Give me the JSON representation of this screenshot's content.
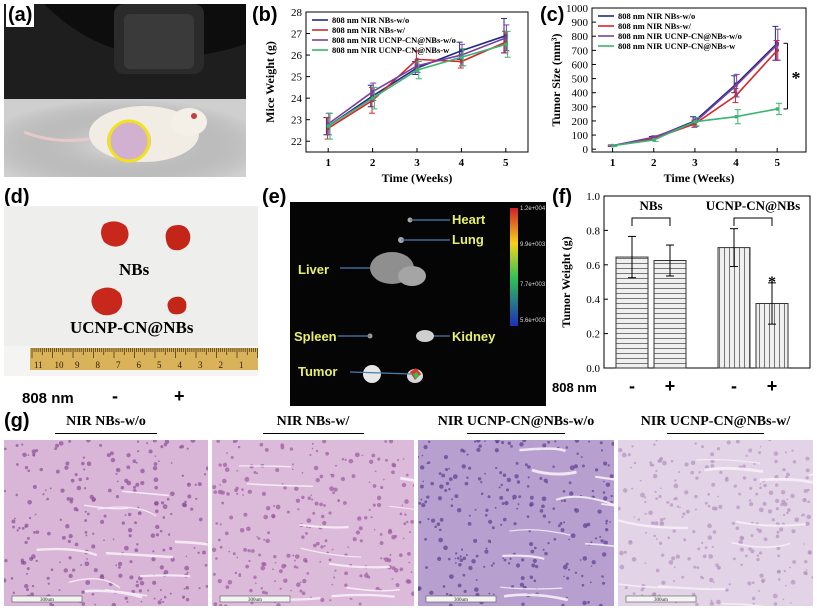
{
  "panel_labels": {
    "a": "(a)",
    "b": "(b)",
    "c": "(c)",
    "d": "(d)",
    "e": "(e)",
    "f": "(f)",
    "g": "(g)"
  },
  "colors": {
    "s1": "#1f2a8a",
    "s2": "#d62728",
    "s3": "#7b3fa0",
    "s4": "#3cb371",
    "photo_bg": "#1a1a1a",
    "ring": "#f2e21a",
    "tumor": "#c8281c",
    "ruler": "#d9b25a",
    "he_bg": "#cfb3d6",
    "he_dark": "#6e3d8c"
  },
  "legend_series": [
    "808 nm NIR NBs-w/o",
    "808 nm NIR NBs-w/",
    "808 nm NIR UCNP-CN@NBs-w/o",
    "808 nm NIR UCNP-CN@NBs-w"
  ],
  "chart_data": [
    {
      "id": "b",
      "type": "line",
      "xlabel": "Time (Weeks)",
      "ylabel": "Mice Weight (g)",
      "x": [
        1,
        2,
        3,
        4,
        5
      ],
      "xlim": [
        0.5,
        5.5
      ],
      "ylim": [
        21.5,
        28
      ],
      "yticks": [
        22,
        23,
        24,
        25,
        26,
        27,
        28
      ],
      "series": [
        {
          "name": "808 nm NIR NBs-w/o",
          "values": [
            22.7,
            24.1,
            25.4,
            26.2,
            26.9
          ],
          "err": [
            0.4,
            0.5,
            0.3,
            0.4,
            0.8
          ]
        },
        {
          "name": "808 nm NIR NBs-w/",
          "values": [
            22.6,
            23.9,
            25.8,
            25.7,
            26.6
          ],
          "err": [
            0.5,
            0.6,
            0.4,
            0.3,
            0.5
          ]
        },
        {
          "name": "808 nm NIR UCNP-CN@NBs-w/o",
          "values": [
            22.8,
            24.3,
            25.5,
            26.0,
            26.8
          ],
          "err": [
            0.5,
            0.4,
            0.3,
            0.5,
            0.6
          ]
        },
        {
          "name": "808 nm NIR UCNP-CN@NBs-w",
          "values": [
            22.7,
            24.0,
            25.3,
            25.9,
            26.5
          ],
          "err": [
            0.6,
            0.5,
            0.4,
            0.4,
            0.6
          ]
        }
      ],
      "grid": false,
      "legend": "top-left"
    },
    {
      "id": "c",
      "type": "line",
      "xlabel": "Time (Weeks)",
      "ylabel": "Tumor Size (mm³)",
      "x": [
        1,
        2,
        3,
        4,
        5
      ],
      "xlim": [
        0.5,
        5.7
      ],
      "ylim": [
        -20,
        1000
      ],
      "yticks": [
        0,
        100,
        200,
        300,
        400,
        500,
        600,
        700,
        800,
        900,
        1000
      ],
      "series": [
        {
          "name": "808 nm NIR NBs-w/o",
          "values": [
            25,
            80,
            200,
            460,
            750
          ],
          "err": [
            5,
            10,
            30,
            60,
            120
          ]
        },
        {
          "name": "808 nm NIR NBs-w/",
          "values": [
            25,
            75,
            180,
            380,
            700
          ],
          "err": [
            5,
            10,
            25,
            50,
            70
          ]
        },
        {
          "name": "808 nm NIR UCNP-CN@NBs-w/o",
          "values": [
            25,
            85,
            190,
            450,
            740
          ],
          "err": [
            5,
            10,
            30,
            80,
            110
          ]
        },
        {
          "name": "808 nm NIR UCNP-CN@NBs-w",
          "values": [
            25,
            65,
            195,
            230,
            285
          ],
          "err": [
            5,
            10,
            30,
            50,
            40
          ]
        }
      ],
      "significance": "*",
      "grid": false,
      "legend": "top-left"
    },
    {
      "id": "f",
      "type": "bar",
      "ylabel": "Tumor Weight (g)",
      "categories": [
        "-",
        "+",
        "-",
        "+"
      ],
      "groups": [
        "NBs",
        "UCNP-CN@NBs"
      ],
      "values": [
        0.645,
        0.625,
        0.7,
        0.375
      ],
      "err": [
        0.12,
        0.09,
        0.11,
        0.12
      ],
      "ylim": [
        0,
        1.0
      ],
      "yticks": [
        0.0,
        0.2,
        0.4,
        0.6,
        0.8,
        1.0
      ],
      "significance": "*",
      "condition_label": "808 nm",
      "grid": false
    }
  ],
  "panel_d": {
    "nbs_label": "NBs",
    "ucnp_label": "UCNP-CN@NBs",
    "ruler_ticks": [
      "11",
      "10",
      "9",
      "8",
      "7",
      "6",
      "5",
      "4",
      "3",
      "2",
      "1"
    ],
    "condition_label": "808 nm",
    "minus": "-",
    "plus": "+"
  },
  "panel_e": {
    "organs": [
      "Heart",
      "Lung",
      "Liver",
      "Spleen",
      "Kidney",
      "Tumor"
    ],
    "scale_ticks": [
      "1.2e+004",
      "9.9e+003",
      "7.7e+003",
      "5.6e+003"
    ]
  },
  "panel_g": {
    "titles": [
      "NIR NBs-w/o",
      "NIR NBs-w/",
      "NIR UCNP-CN@NBs-w/o",
      "NIR UCNP-CN@NBs-w/"
    ],
    "scalebar": "300um"
  }
}
